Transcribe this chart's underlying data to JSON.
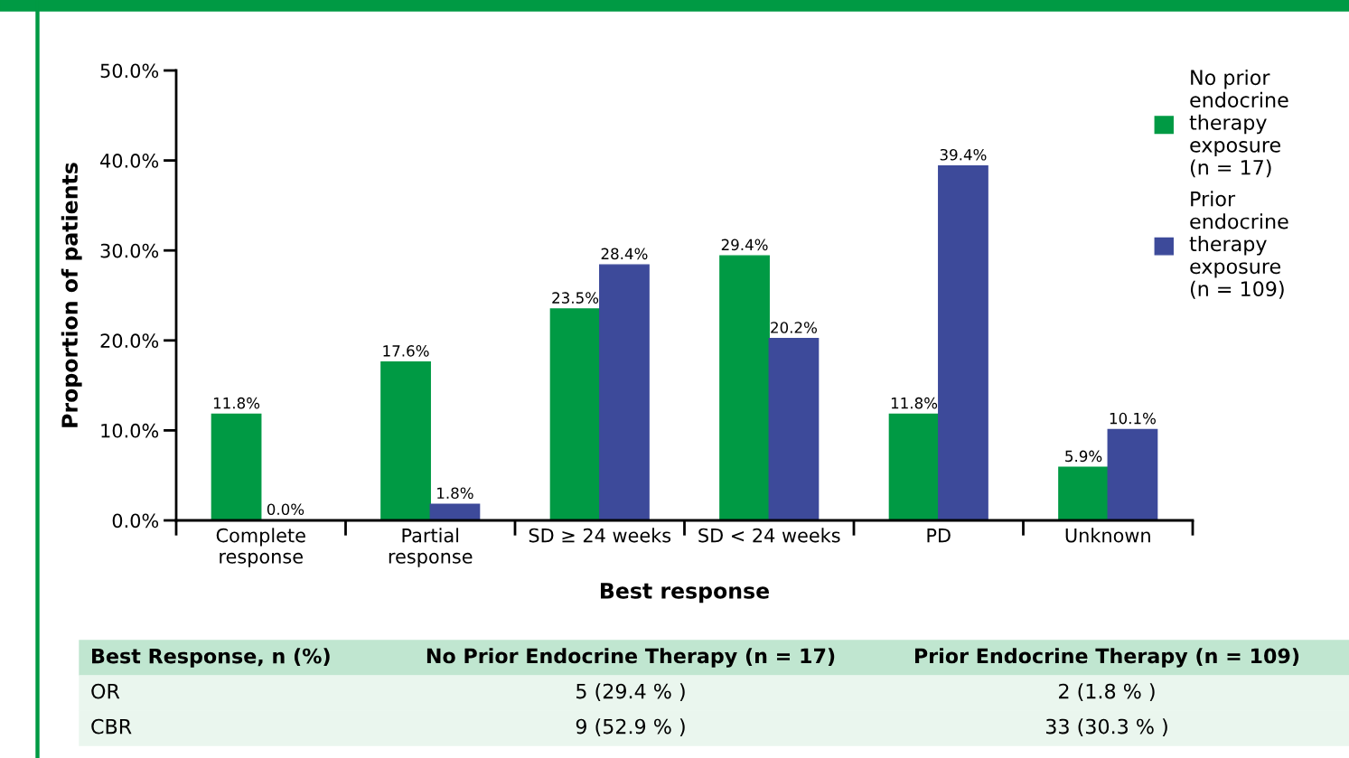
{
  "chart_data": {
    "type": "bar",
    "categories": [
      "Complete\nresponse",
      "Partial\nresponse",
      "SD ≥ 24 weeks",
      "SD < 24 weeks",
      "PD",
      "Unknown"
    ],
    "series": [
      {
        "name": "No prior\nendocrine\ntherapy\nexposure\n(n = 17)",
        "color": "#009a44",
        "values": [
          11.8,
          17.6,
          23.5,
          29.4,
          11.8,
          5.9
        ],
        "value_labels": [
          "11.8%",
          "17.6%",
          "23.5%",
          "29.4%",
          "11.8%",
          "5.9%"
        ]
      },
      {
        "name": "Prior\nendocrine\ntherapy\nexposure\n(n = 109)",
        "color": "#3d4a9a",
        "values": [
          0.0,
          1.8,
          28.4,
          20.2,
          39.4,
          10.1
        ],
        "value_labels": [
          "0.0%",
          "1.8%",
          "28.4%",
          "20.2%",
          "39.4%",
          "10.1%"
        ]
      }
    ],
    "xlabel": "Best response",
    "ylabel": "Proportion of patients",
    "ylim": [
      0,
      50
    ],
    "yticks": [
      {
        "value": 0,
        "label": "0.0%"
      },
      {
        "value": 10,
        "label": "10.0%"
      },
      {
        "value": 20,
        "label": "20.0%"
      },
      {
        "value": 30,
        "label": "30.0%"
      },
      {
        "value": 40,
        "label": "40.0%"
      },
      {
        "value": 50,
        "label": "50.0%"
      }
    ],
    "legend": "top right",
    "grid": false,
    "annotations": [
      "Best Response, n (%)",
      "No Prior Endocrine Therapy (n = 17)",
      "Prior Endocrine Therapy (n = 109)",
      "OR",
      "5 (29.4 % )",
      "2 (1.8 % )",
      "CBR",
      "9 (52.9 % )",
      "33 (30.3 % )"
    ]
  }
}
